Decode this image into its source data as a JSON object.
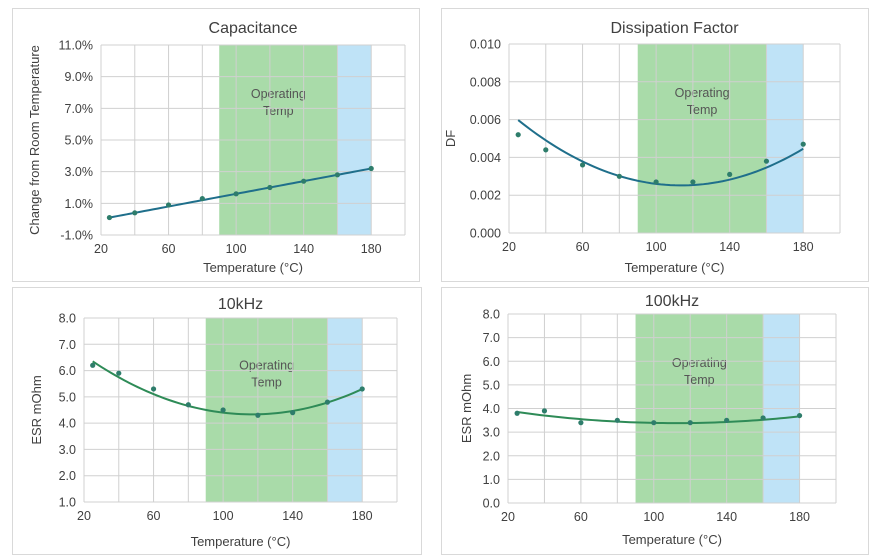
{
  "colors": {
    "operating_band": "#a9dba9",
    "high_band": "#bfe3f7",
    "line_capacitance": "#1f6f8b",
    "line_df": "#1f6f8b",
    "line_10khz": "#2e8b57",
    "line_100khz": "#2e8b57",
    "point": "#2e7d6b",
    "grid": "#d0d0d0",
    "text": "#404040"
  },
  "chart_data": [
    {
      "type": "scatter",
      "title": "Capacitance",
      "xlabel": "Temperature (°C)",
      "ylabel": "Change from Room Temperature",
      "xlim": [
        20,
        200
      ],
      "ylim": [
        -1.0,
        11.0
      ],
      "x_ticks": [
        20,
        60,
        100,
        140,
        180
      ],
      "x_tick_labels": [
        "20",
        "60",
        "100",
        "140",
        "180"
      ],
      "y_ticks": [
        -1,
        1,
        3,
        5,
        7,
        9,
        11
      ],
      "y_tick_labels": [
        "-1.0%",
        "1.0%",
        "3.0%",
        "5.0%",
        "7.0%",
        "9.0%",
        "11.0%"
      ],
      "x_grid_step": 20,
      "y_grid_step": 2,
      "bands": [
        {
          "from": 90,
          "to": 160,
          "label": [
            "Operating",
            "Temp"
          ],
          "color_key": "operating_band"
        },
        {
          "from": 160,
          "to": 180,
          "label": [],
          "color_key": "high_band"
        }
      ],
      "points": [
        [
          25,
          0.1
        ],
        [
          40,
          0.4
        ],
        [
          60,
          0.9
        ],
        [
          80,
          1.3
        ],
        [
          100,
          1.6
        ],
        [
          120,
          2.0
        ],
        [
          140,
          2.4
        ],
        [
          160,
          2.8
        ],
        [
          180,
          3.2
        ]
      ],
      "trend": {
        "type": "poly",
        "coeffs": [
          -0.4,
          0.02,
          0.0
        ]
      },
      "line_color_key": "line_capacitance"
    },
    {
      "type": "scatter",
      "title": "Dissipation Factor",
      "xlabel": "Temperature (°C)",
      "ylabel": "DF",
      "xlim": [
        20,
        200
      ],
      "ylim": [
        0.0,
        0.01
      ],
      "x_ticks": [
        20,
        60,
        100,
        140,
        180
      ],
      "x_tick_labels": [
        "20",
        "60",
        "100",
        "140",
        "180"
      ],
      "y_ticks": [
        0,
        0.002,
        0.004,
        0.006,
        0.008,
        0.01
      ],
      "y_tick_labels": [
        "0.000",
        "0.002",
        "0.004",
        "0.006",
        "0.008",
        "0.010"
      ],
      "x_grid_step": 20,
      "y_grid_step": 0.002,
      "bands": [
        {
          "from": 90,
          "to": 160,
          "label": [
            "Operating",
            "Temp"
          ],
          "color_key": "operating_band"
        },
        {
          "from": 160,
          "to": 180,
          "label": [],
          "color_key": "high_band"
        }
      ],
      "points": [
        [
          25,
          0.0052
        ],
        [
          40,
          0.0044
        ],
        [
          60,
          0.0036
        ],
        [
          80,
          0.003
        ],
        [
          100,
          0.0027
        ],
        [
          120,
          0.0027
        ],
        [
          140,
          0.0031
        ],
        [
          160,
          0.0038
        ],
        [
          180,
          0.0047
        ]
      ],
      "trend": {
        "type": "poly",
        "coeffs": [
          0.0082,
          -0.0001,
          4.4e-07
        ]
      },
      "line_color_key": "line_df"
    },
    {
      "type": "scatter",
      "title": "10kHz",
      "xlabel": "Temperature (°C)",
      "ylabel": "ESR mOhm",
      "xlim": [
        20,
        200
      ],
      "ylim": [
        1.0,
        8.0
      ],
      "x_ticks": [
        20,
        60,
        100,
        140,
        180
      ],
      "x_tick_labels": [
        "20",
        "60",
        "100",
        "140",
        "180"
      ],
      "y_ticks": [
        1,
        2,
        3,
        4,
        5,
        6,
        7,
        8
      ],
      "y_tick_labels": [
        "1.0",
        "2.0",
        "3.0",
        "4.0",
        "5.0",
        "6.0",
        "7.0",
        "8.0"
      ],
      "x_grid_step": 20,
      "y_grid_step": 1,
      "bands": [
        {
          "from": 90,
          "to": 160,
          "label": [
            "Operating",
            "Temp"
          ],
          "color_key": "operating_band"
        },
        {
          "from": 160,
          "to": 180,
          "label": [],
          "color_key": "high_band"
        }
      ],
      "points": [
        [
          25,
          6.2
        ],
        [
          40,
          5.9
        ],
        [
          60,
          5.3
        ],
        [
          80,
          4.7
        ],
        [
          100,
          4.5
        ],
        [
          120,
          4.3
        ],
        [
          140,
          4.4
        ],
        [
          160,
          4.8
        ],
        [
          180,
          5.3
        ]
      ],
      "trend": {
        "type": "poly",
        "coeffs": [
          7.6,
          -0.056,
          0.00024
        ]
      },
      "line_color_key": "line_10khz"
    },
    {
      "type": "scatter",
      "title": "100kHz",
      "xlabel": "Temperature (°C)",
      "ylabel": "ESR mOhm",
      "xlim": [
        20,
        200
      ],
      "ylim": [
        0.0,
        8.0
      ],
      "x_ticks": [
        20,
        60,
        100,
        140,
        180
      ],
      "x_tick_labels": [
        "20",
        "60",
        "100",
        "140",
        "180"
      ],
      "y_ticks": [
        0,
        1,
        2,
        3,
        4,
        5,
        6,
        7,
        8
      ],
      "y_tick_labels": [
        "0.0",
        "1.0",
        "2.0",
        "3.0",
        "4.0",
        "5.0",
        "6.0",
        "7.0",
        "8.0"
      ],
      "x_grid_step": 20,
      "y_grid_step": 1,
      "bands": [
        {
          "from": 90,
          "to": 160,
          "label": [
            "Operating",
            "Temp"
          ],
          "color_key": "operating_band"
        },
        {
          "from": 160,
          "to": 180,
          "label": [],
          "color_key": "high_band"
        }
      ],
      "points": [
        [
          25,
          3.8
        ],
        [
          40,
          3.9
        ],
        [
          60,
          3.4
        ],
        [
          80,
          3.5
        ],
        [
          100,
          3.4
        ],
        [
          120,
          3.4
        ],
        [
          140,
          3.5
        ],
        [
          160,
          3.6
        ],
        [
          180,
          3.7
        ]
      ],
      "trend": {
        "type": "poly",
        "coeffs": [
          4.16,
          -0.0139,
          6.2e-05
        ]
      },
      "line_color_key": "line_100khz"
    }
  ]
}
